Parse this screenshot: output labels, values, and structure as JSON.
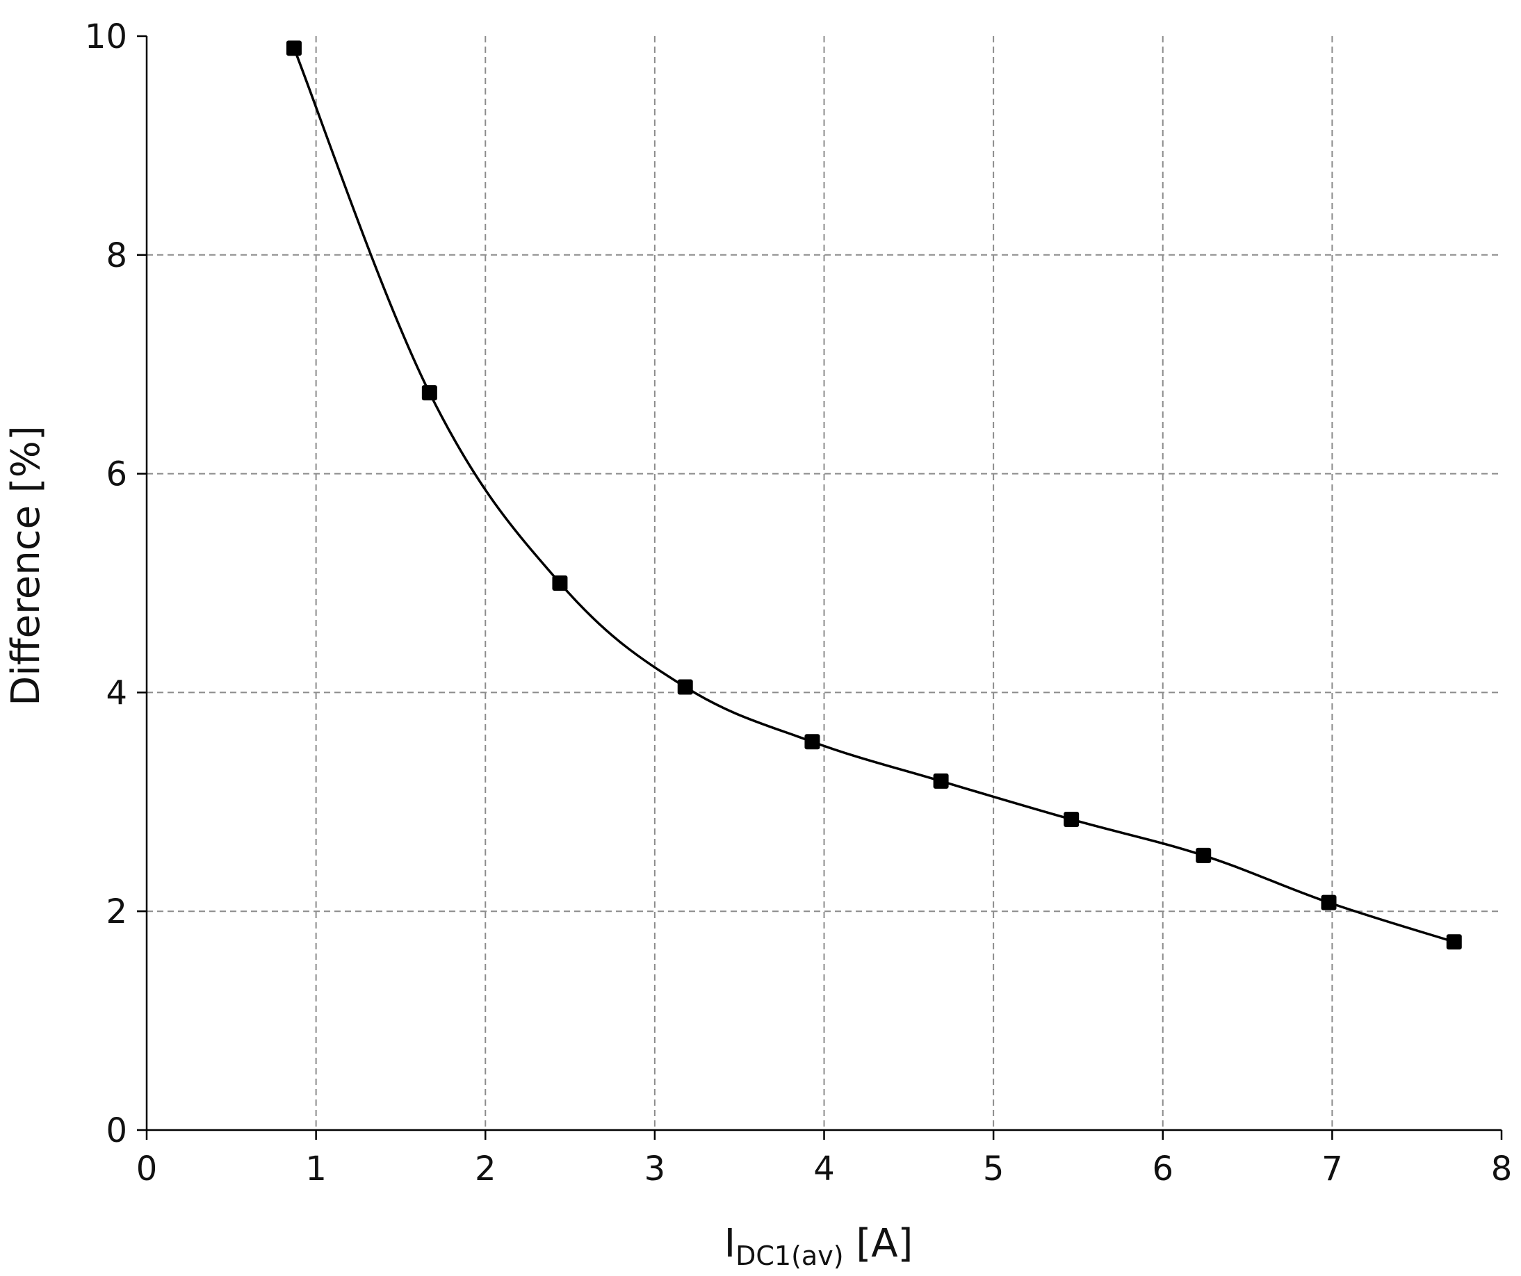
{
  "chart_data": {
    "type": "line",
    "xlabel": {
      "main": "I",
      "sub": "DC1(av)",
      "unit": " [A]"
    },
    "ylabel": "Difference [%]",
    "xlim": [
      0,
      8
    ],
    "ylim": [
      0,
      10
    ],
    "xticks": [
      "0",
      "1",
      "2",
      "3",
      "4",
      "5",
      "6",
      "7",
      "8"
    ],
    "yticks": [
      "0",
      "2",
      "4",
      "6",
      "8",
      "10"
    ],
    "grid": true,
    "series": [
      {
        "color": "#000000",
        "marker": "square",
        "smooth": true,
        "x": [
          0.87,
          1.67,
          2.44,
          3.18,
          3.93,
          4.69,
          5.46,
          6.24,
          6.98,
          7.72
        ],
        "y": [
          9.89,
          6.74,
          5.0,
          4.05,
          3.55,
          3.19,
          2.84,
          2.51,
          2.08,
          1.72
        ]
      }
    ]
  }
}
